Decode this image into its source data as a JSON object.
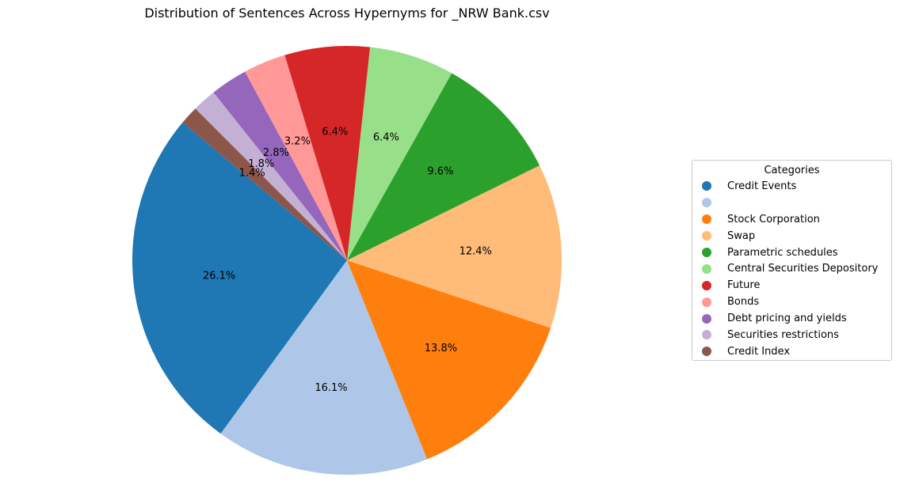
{
  "chart_data": {
    "type": "pie",
    "title": "Distribution of Sentences Across Hypernyms for _NRW Bank.csv",
    "legend_title": "Categories",
    "legend_position": "right",
    "start_angle_deg": 140,
    "direction": "counterclockwise",
    "slices": [
      {
        "label": "Credit Events",
        "value": 26.1,
        "pct_label": "26.1%",
        "color": "#1f77b4"
      },
      {
        "label": "",
        "value": 16.1,
        "pct_label": "16.1%",
        "color": "#aec7e8"
      },
      {
        "label": "Stock Corporation",
        "value": 13.8,
        "pct_label": "13.8%",
        "color": "#ff7f0e"
      },
      {
        "label": "Swap",
        "value": 12.4,
        "pct_label": "12.4%",
        "color": "#ffbb78"
      },
      {
        "label": "Parametric schedules",
        "value": 9.6,
        "pct_label": "9.6%",
        "color": "#2ca02c"
      },
      {
        "label": "Central Securities Depository",
        "value": 6.4,
        "pct_label": "6.4%",
        "color": "#98df8a"
      },
      {
        "label": "Future",
        "value": 6.4,
        "pct_label": "6.4%",
        "color": "#d62728"
      },
      {
        "label": "Bonds",
        "value": 3.2,
        "pct_label": "3.2%",
        "color": "#ff9896"
      },
      {
        "label": "Debt pricing and yields",
        "value": 2.8,
        "pct_label": "2.8%",
        "color": "#9467bd"
      },
      {
        "label": "Securities restrictions",
        "value": 1.8,
        "pct_label": "1.8%",
        "color": "#c5b0d5"
      },
      {
        "label": "Credit Index",
        "value": 1.4,
        "pct_label": "1.4%",
        "color": "#8c564b"
      }
    ]
  }
}
